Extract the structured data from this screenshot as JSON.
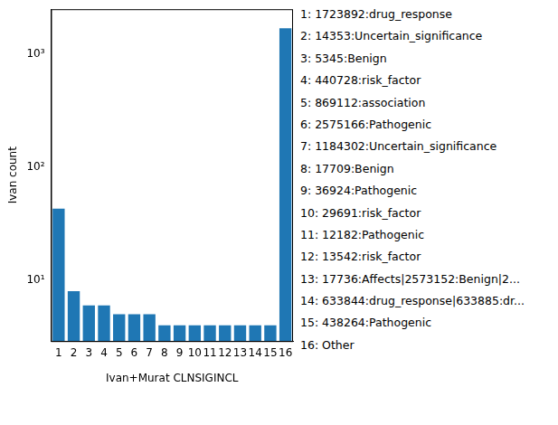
{
  "chart_data": {
    "type": "bar",
    "x_label": "Ivan+Murat CLNSIGINCL",
    "y_label": "Ivan count",
    "categories": [
      "1",
      "2",
      "3",
      "4",
      "5",
      "6",
      "7",
      "8",
      "9",
      "10",
      "11",
      "12",
      "13",
      "14",
      "15",
      "16"
    ],
    "values": [
      43,
      8,
      6,
      6,
      5,
      5,
      5,
      4,
      4,
      4,
      4,
      4,
      4,
      4,
      4,
      1700
    ],
    "color": "#1f77b4",
    "log": "y",
    "ylim": [
      2.9,
      2500
    ],
    "yticks": [
      {
        "value": 10,
        "label": "10¹"
      },
      {
        "value": 100,
        "label": "10²"
      },
      {
        "value": 1000,
        "label": "10³"
      }
    ],
    "grid": false,
    "annotations": [
      "1: 1723892:drug_response",
      "2: 14353:Uncertain_significance",
      "3: 5345:Benign",
      "4: 440728:risk_factor",
      "5: 869112:association",
      "6: 2575166:Pathogenic",
      "7: 1184302:Uncertain_significance",
      "8: 17709:Benign",
      "9: 36924:Pathogenic",
      "10: 29691:risk_factor",
      "11: 12182:Pathogenic",
      "12: 13542:risk_factor",
      "13: 17736:Affects|2573152:Benign|2...",
      "14: 633844:drug_response|633885:dr...",
      "15: 438264:Pathogenic",
      "16: Other"
    ]
  }
}
